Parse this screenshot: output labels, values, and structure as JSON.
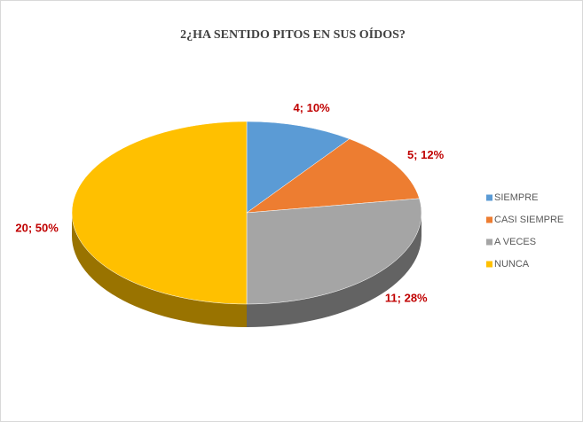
{
  "chart_data": {
    "type": "pie",
    "title": "2¿HA SENTIDO PITOS EN SUS OÍDOS?",
    "categories": [
      "SIEMPRE",
      "CASI SIEMPRE",
      "A VECES",
      "NUNCA"
    ],
    "values": [
      4,
      5,
      11,
      20
    ],
    "value_labels": [
      "4; 10%",
      "5; 12%",
      "11; 28%",
      "20; 50%"
    ],
    "colors": [
      "#5b9bd5",
      "#ed7d31",
      "#a5a5a5",
      "#ffc000"
    ],
    "legend": "right"
  }
}
